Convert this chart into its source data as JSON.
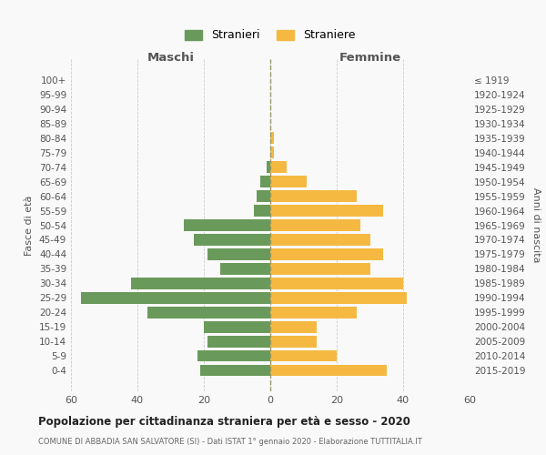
{
  "age_groups": [
    "0-4",
    "5-9",
    "10-14",
    "15-19",
    "20-24",
    "25-29",
    "30-34",
    "35-39",
    "40-44",
    "45-49",
    "50-54",
    "55-59",
    "60-64",
    "65-69",
    "70-74",
    "75-79",
    "80-84",
    "85-89",
    "90-94",
    "95-99",
    "100+"
  ],
  "birth_years": [
    "2015-2019",
    "2010-2014",
    "2005-2009",
    "2000-2004",
    "1995-1999",
    "1990-1994",
    "1985-1989",
    "1980-1984",
    "1975-1979",
    "1970-1974",
    "1965-1969",
    "1960-1964",
    "1955-1959",
    "1950-1954",
    "1945-1949",
    "1940-1944",
    "1935-1939",
    "1930-1934",
    "1925-1929",
    "1920-1924",
    "≤ 1919"
  ],
  "males": [
    21,
    22,
    19,
    20,
    37,
    57,
    42,
    15,
    19,
    23,
    26,
    5,
    4,
    3,
    1,
    0,
    0,
    0,
    0,
    0,
    0
  ],
  "females": [
    35,
    20,
    14,
    14,
    26,
    41,
    40,
    30,
    34,
    30,
    27,
    34,
    26,
    11,
    5,
    1,
    1,
    0,
    0,
    0,
    0
  ],
  "male_color": "#6a9a5b",
  "female_color": "#f5b942",
  "background_color": "#f9f9f9",
  "grid_color": "#cccccc",
  "title": "Popolazione per cittadinanza straniera per età e sesso - 2020",
  "subtitle": "COMUNE DI ABBADIA SAN SALVATORE (SI) - Dati ISTAT 1° gennaio 2020 - Elaborazione TUTTITALIA.IT",
  "xlabel_left": "Maschi",
  "xlabel_right": "Femmine",
  "ylabel_left": "Fasce di età",
  "ylabel_right": "Anni di nascita",
  "legend_male": "Stranieri",
  "legend_female": "Straniere",
  "xlim": 60,
  "bar_height": 0.8
}
